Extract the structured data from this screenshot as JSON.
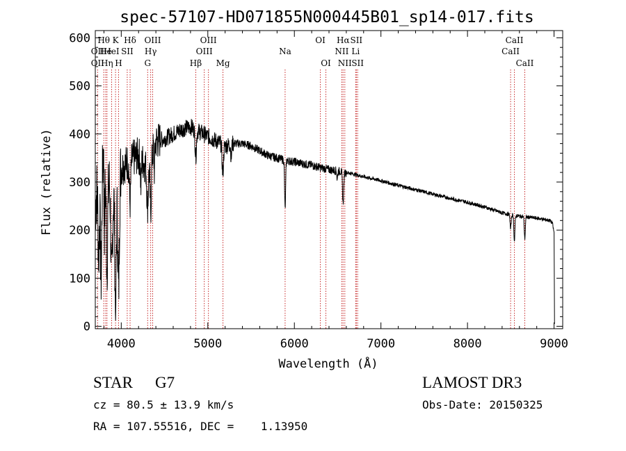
{
  "chart_data": {
    "type": "line",
    "title": "spec-57107-HD071855N000445B01_sp14-017.fits",
    "xlabel": "Wavelength (Å)",
    "ylabel": "Flux (relative)",
    "xlim": [
      3700,
      9100
    ],
    "ylim": [
      -5,
      615
    ],
    "x_ticks": [
      4000,
      5000,
      6000,
      7000,
      8000,
      9000
    ],
    "y_ticks": [
      0,
      100,
      200,
      300,
      400,
      500,
      600
    ],
    "grid": false,
    "series": [
      {
        "name": "spectrum",
        "continuum": [
          [
            3700,
            250
          ],
          [
            3750,
            340
          ],
          [
            3800,
            330
          ],
          [
            3850,
            300
          ],
          [
            3900,
            280
          ],
          [
            3950,
            270
          ],
          [
            4000,
            330
          ],
          [
            4100,
            345
          ],
          [
            4200,
            355
          ],
          [
            4300,
            330
          ],
          [
            4400,
            385
          ],
          [
            4500,
            390
          ],
          [
            4600,
            400
          ],
          [
            4700,
            410
          ],
          [
            4800,
            415
          ],
          [
            4900,
            405
          ],
          [
            5000,
            395
          ],
          [
            5100,
            385
          ],
          [
            5200,
            375
          ],
          [
            5300,
            380
          ],
          [
            5400,
            380
          ],
          [
            5500,
            375
          ],
          [
            5600,
            365
          ],
          [
            5700,
            355
          ],
          [
            5800,
            350
          ],
          [
            5900,
            345
          ],
          [
            6000,
            342
          ],
          [
            6100,
            338
          ],
          [
            6200,
            335
          ],
          [
            6300,
            330
          ],
          [
            6400,
            326
          ],
          [
            6500,
            323
          ],
          [
            6600,
            320
          ],
          [
            6700,
            316
          ],
          [
            6800,
            311
          ],
          [
            7000,
            303
          ],
          [
            7200,
            293
          ],
          [
            7400,
            284
          ],
          [
            7600,
            275
          ],
          [
            7800,
            266
          ],
          [
            8000,
            258
          ],
          [
            8200,
            248
          ],
          [
            8400,
            236
          ],
          [
            8500,
            232
          ],
          [
            8600,
            229
          ],
          [
            8800,
            225
          ],
          [
            8950,
            220
          ],
          [
            8980,
            215
          ],
          [
            9000,
            195
          ],
          [
            9005,
            20
          ]
        ],
        "absorption": [
          {
            "wave": 3740,
            "depth": 170,
            "width": 8
          },
          {
            "wave": 3760,
            "depth": 130,
            "width": 6
          },
          {
            "wave": 3770,
            "depth": 190,
            "width": 6
          },
          {
            "wave": 3800,
            "depth": 170,
            "width": 8
          },
          {
            "wave": 3835,
            "depth": 180,
            "width": 8
          },
          {
            "wave": 3889,
            "depth": 200,
            "width": 9
          },
          {
            "wave": 3934,
            "depth": 240,
            "width": 8
          },
          {
            "wave": 3969,
            "depth": 220,
            "width": 8
          },
          {
            "wave": 4101,
            "depth": 90,
            "width": 8
          },
          {
            "wave": 4227,
            "depth": 60,
            "width": 5
          },
          {
            "wave": 4305,
            "depth": 80,
            "width": 9
          },
          {
            "wave": 4340,
            "depth": 110,
            "width": 8
          },
          {
            "wave": 4383,
            "depth": 50,
            "width": 5
          },
          {
            "wave": 4861,
            "depth": 55,
            "width": 8
          },
          {
            "wave": 5173,
            "depth": 60,
            "width": 8
          },
          {
            "wave": 5270,
            "depth": 30,
            "width": 5
          },
          {
            "wave": 5893,
            "depth": 100,
            "width": 6
          },
          {
            "wave": 6495,
            "depth": 20,
            "width": 4
          },
          {
            "wave": 6563,
            "depth": 65,
            "width": 7
          },
          {
            "wave": 8498,
            "depth": 30,
            "width": 6
          },
          {
            "wave": 8542,
            "depth": 55,
            "width": 6
          },
          {
            "wave": 8662,
            "depth": 45,
            "width": 6
          }
        ],
        "emission": [
          {
            "wave": 3795,
            "height": 180,
            "width": 5
          }
        ]
      }
    ],
    "line_markers": [
      {
        "label": "OII",
        "wave": 3727,
        "row": 2
      },
      {
        "label": "OII",
        "wave": 3727,
        "row": 3
      },
      {
        "label": "Hθ",
        "wave": 3798,
        "row": 1
      },
      {
        "label": "He",
        "wave": 3820,
        "row": 2
      },
      {
        "label": "Hη",
        "wave": 3835,
        "row": 3
      },
      {
        "label": "K",
        "wave": 3934,
        "row": 1
      },
      {
        "label": "H",
        "wave": 3969,
        "row": 3
      },
      {
        "label": "HeI",
        "wave": 3889,
        "row": 2
      },
      {
        "label": "SII",
        "wave": 4069,
        "row": 2
      },
      {
        "label": "Hδ",
        "wave": 4102,
        "row": 1
      },
      {
        "label": "OIII",
        "wave": 4363,
        "row": 1
      },
      {
        "label": "Hγ",
        "wave": 4340,
        "row": 2
      },
      {
        "label": "G",
        "wave": 4305,
        "row": 3
      },
      {
        "label": "Hβ",
        "wave": 4861,
        "row": 3
      },
      {
        "label": "OIII",
        "wave": 5007,
        "row": 1
      },
      {
        "label": "OIII",
        "wave": 4959,
        "row": 2
      },
      {
        "label": "Mg",
        "wave": 5175,
        "row": 3
      },
      {
        "label": "Na",
        "wave": 5893,
        "row": 2
      },
      {
        "label": "OI",
        "wave": 6300,
        "row": 1
      },
      {
        "label": "OI",
        "wave": 6364,
        "row": 3
      },
      {
        "label": "Hα",
        "wave": 6563,
        "row": 1
      },
      {
        "label": "NII",
        "wave": 6548,
        "row": 2
      },
      {
        "label": "NII",
        "wave": 6583,
        "row": 3
      },
      {
        "label": "SII",
        "wave": 6716,
        "row": 1
      },
      {
        "label": "Li",
        "wave": 6708,
        "row": 2
      },
      {
        "label": "SII",
        "wave": 6731,
        "row": 3
      },
      {
        "label": "CaII",
        "wave": 8542,
        "row": 1
      },
      {
        "label": "CaII",
        "wave": 8498,
        "row": 2
      },
      {
        "label": "CaII",
        "wave": 8662,
        "row": 3
      }
    ]
  },
  "info": {
    "object_class": "STAR",
    "subclass": "G7",
    "survey": "LAMOST DR3",
    "redshift": "cz = 80.5 ± 13.9 km/s",
    "obs_date": "Obs-Date: 20150325",
    "coords": "RA = 107.55516, DEC =    1.13950"
  }
}
